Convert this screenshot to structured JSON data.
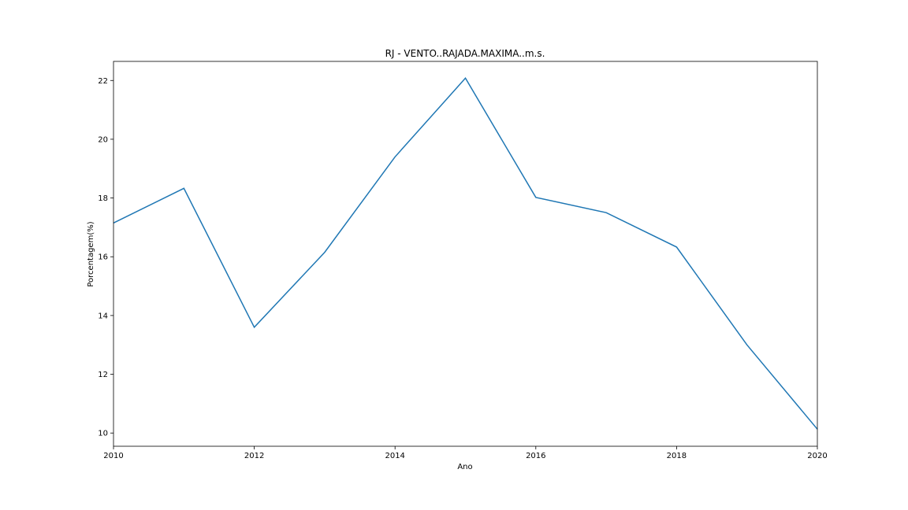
{
  "chart_data": {
    "type": "line",
    "title": "RJ - VENTO..RAJADA.MAXIMA..m.s.",
    "xlabel": "Ano",
    "ylabel": "Porcentagem(%)",
    "x": [
      2010,
      2011,
      2012,
      2013,
      2014,
      2015,
      2016,
      2017,
      2018,
      2019,
      2020
    ],
    "series": [
      {
        "values": [
          17.15,
          18.33,
          13.6,
          16.15,
          19.4,
          22.08,
          18.02,
          17.5,
          16.33,
          13.0,
          10.13
        ],
        "color": "#1f77b4"
      }
    ],
    "xlim": [
      2010,
      2020
    ],
    "ylim": [
      9.55,
      22.65
    ],
    "xticks": [
      "2010",
      "2012",
      "2014",
      "2016",
      "2018",
      "2020"
    ],
    "yticks": [
      "10",
      "12",
      "14",
      "16",
      "18",
      "20",
      "22"
    ],
    "grid": false
  }
}
